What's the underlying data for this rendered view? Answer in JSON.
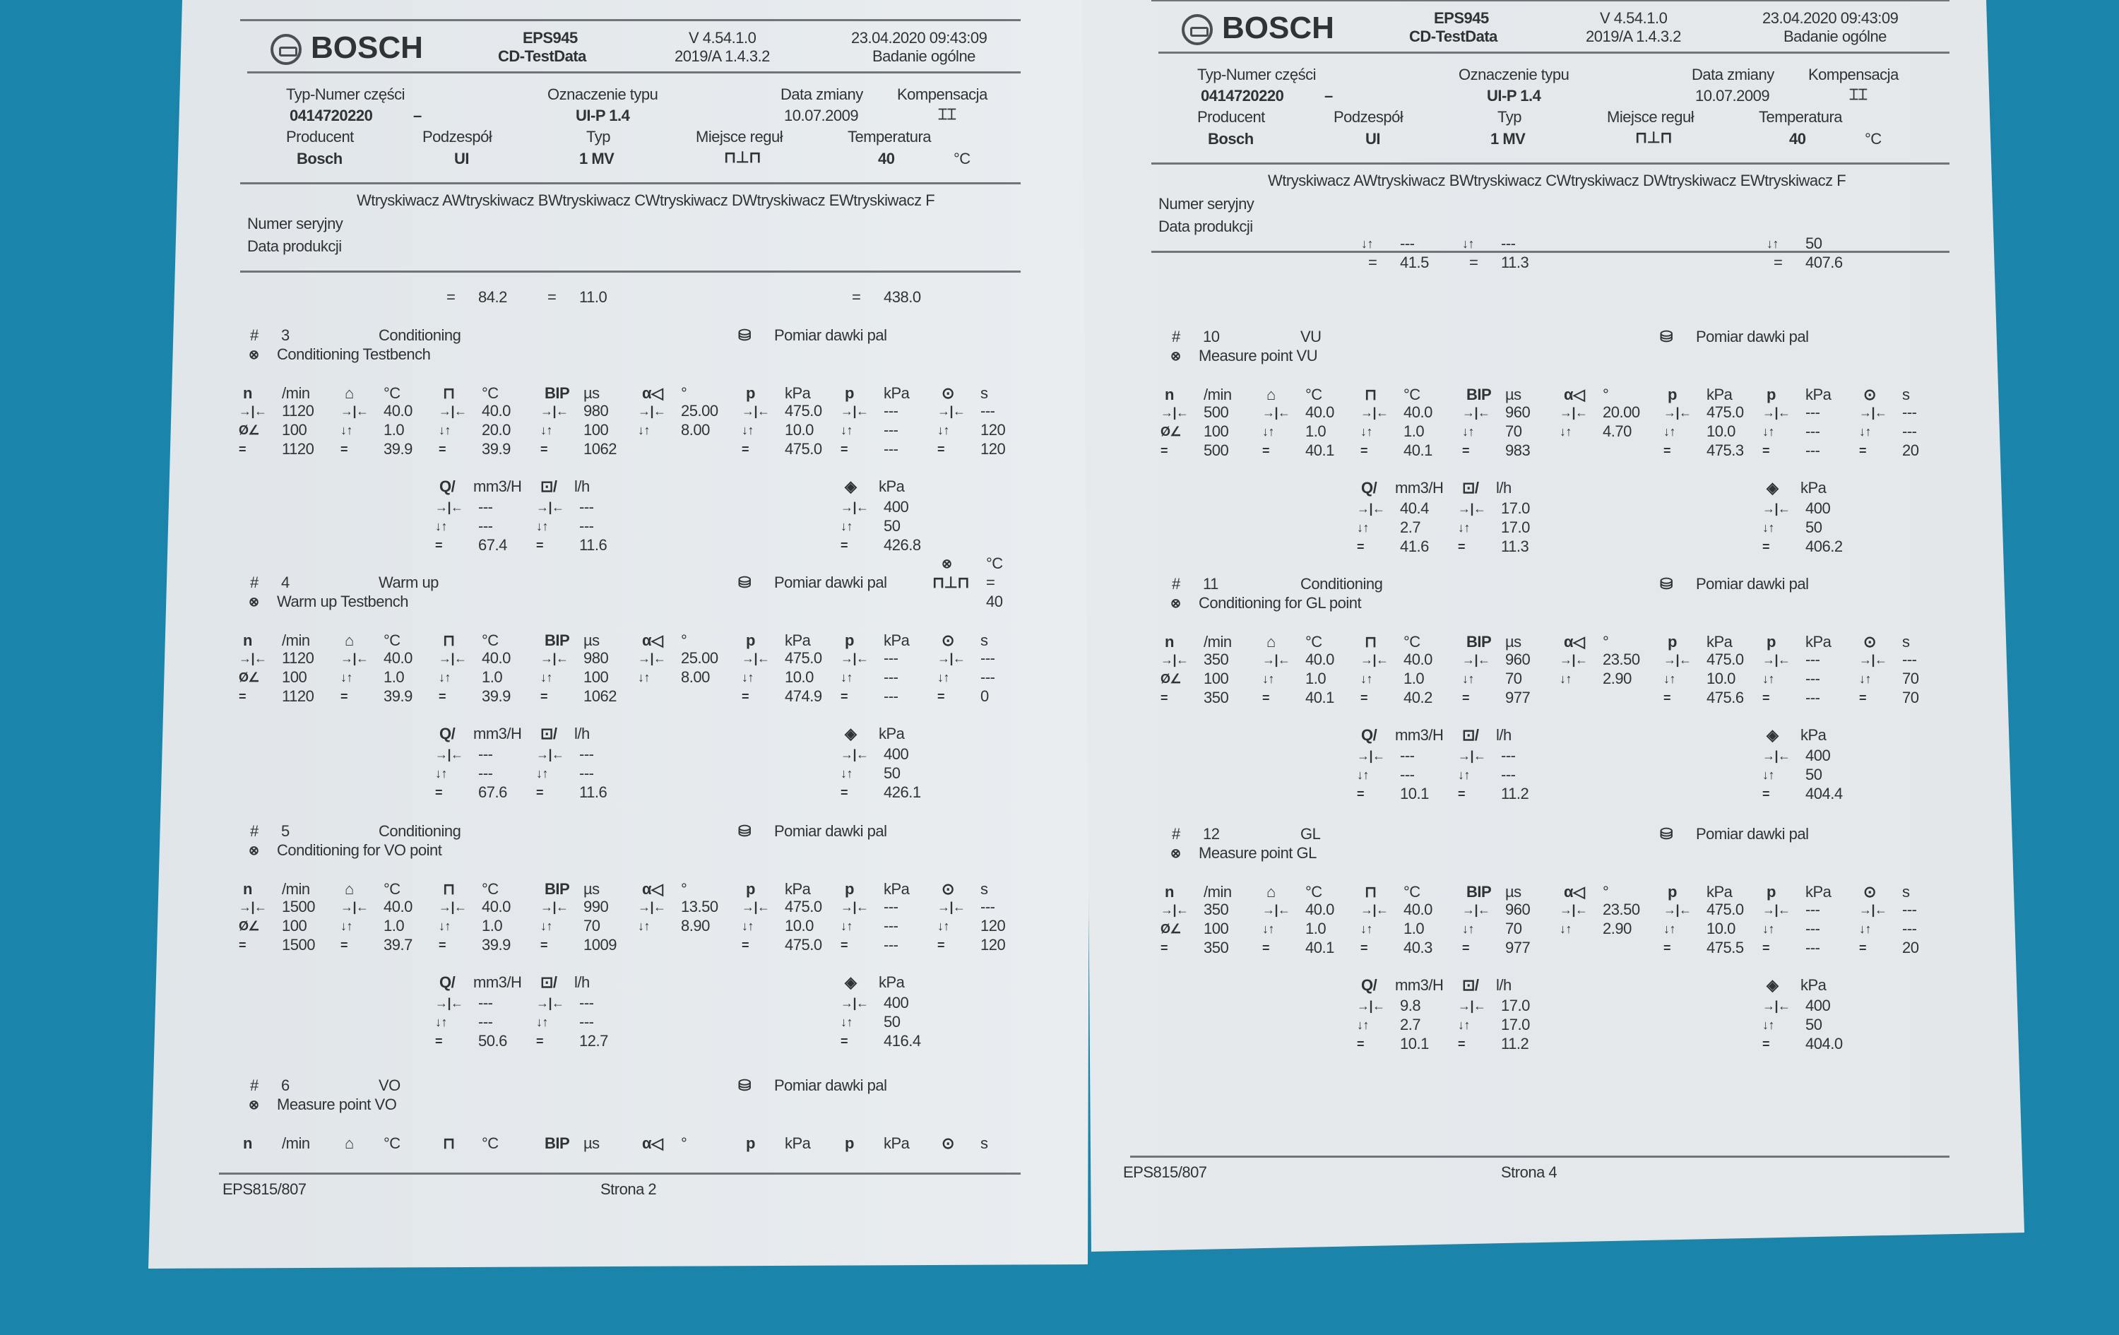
{
  "header": {
    "brand": "BOSCH",
    "product": "EPS945",
    "product_sub": "CD-TestData",
    "version": "V 4.54.1.0",
    "version_sub": "2019/A 1.4.3.2",
    "datetime": "23.04.2020 09:43:09",
    "test_type": "Badanie ogólne"
  },
  "info": {
    "part_label": "Typ-Numer części",
    "part_value": "0414720220",
    "part_dash": "–",
    "type_label": "Oznaczenie typu",
    "type_value": "UI-P 1.4",
    "changed_label": "Data zmiany",
    "changed_value": "10.07.2009",
    "comp_label": "Kompensacja",
    "comp_icon": "compensation-icon",
    "maker_label": "Producent",
    "maker_value": "Bosch",
    "component_label": "Podzespół",
    "component_value": "UI",
    "typ_label": "Typ",
    "typ_value": "1 MV",
    "place_label": "Miejsce reguł",
    "place_icon": "test-bench-icon",
    "temp_label": "Temperatura",
    "temp_value": "40",
    "temp_unit": "°C"
  },
  "injectors": "Wtryskiwacz AWtryskiwacz BWtryskiwacz CWtryskiwacz DWtryskiwacz EWtryskiwacz F",
  "serial_label": "Numer seryjny",
  "prod_date_label": "Data produkcji",
  "symbols": {
    "set": "→|←",
    "tol": "↓↑",
    "act": "=",
    "pct": "Ø∠",
    "hash": "#",
    "step": "⊗",
    "dash": "---"
  },
  "main_heads": [
    {
      "sym": "n",
      "unit": "/min"
    },
    {
      "sym": "⌂",
      "unit": "°C"
    },
    {
      "sym": "⊓",
      "unit": "°C"
    },
    {
      "sym": "BIP",
      "unit": "µs"
    },
    {
      "sym": "α◁",
      "unit": "°"
    },
    {
      "sym": "p",
      "unit": "kPa"
    },
    {
      "sym": "p",
      "unit": "kPa"
    },
    {
      "sym": "⊙",
      "unit": "s"
    }
  ],
  "sec_heads": [
    {
      "sym": "Q/",
      "unit": "mm3/H"
    },
    {
      "sym": "⊡/",
      "unit": "l/h"
    },
    {
      "sym": "◈",
      "unit": "kPa"
    }
  ],
  "pages": [
    {
      "footer_left": "EPS815/807",
      "footer_page": "Strona 2",
      "partial": {
        "tol": [
          null,
          null,
          null
        ],
        "act": [
          "84.2",
          "11.0",
          "438.0"
        ]
      },
      "blocks": [
        {
          "num": "3",
          "name": "Conditioning",
          "desc": "Conditioning Testbench",
          "method": "Pomiar dawki pal",
          "main": [
            [
              "1120",
              "100",
              "1120"
            ],
            [
              "40.0",
              "1.0",
              "39.9"
            ],
            [
              "40.0",
              "20.0",
              "39.9"
            ],
            [
              "980",
              "100",
              "1062"
            ],
            [
              "25.00",
              "8.00",
              ""
            ],
            [
              "475.0",
              "10.0",
              "475.0"
            ],
            [
              "---",
              "---",
              "---"
            ],
            [
              "---",
              "120",
              "120"
            ]
          ],
          "sec": [
            [
              "---",
              "---",
              "67.4"
            ],
            [
              "---",
              "---",
              "11.6"
            ],
            [
              "400",
              "50",
              "426.8"
            ]
          ]
        },
        {
          "num": "4",
          "name": "Warm up",
          "desc": "Warm up Testbench",
          "method": "Pomiar dawki pal",
          "extra": {
            "unit": "°C",
            "value": "40"
          },
          "main": [
            [
              "1120",
              "100",
              "1120"
            ],
            [
              "40.0",
              "1.0",
              "39.9"
            ],
            [
              "40.0",
              "1.0",
              "39.9"
            ],
            [
              "980",
              "100",
              "1062"
            ],
            [
              "25.00",
              "8.00",
              ""
            ],
            [
              "475.0",
              "10.0",
              "474.9"
            ],
            [
              "---",
              "---",
              "---"
            ],
            [
              "---",
              "---",
              "0"
            ]
          ],
          "sec": [
            [
              "---",
              "---",
              "67.6"
            ],
            [
              "---",
              "---",
              "11.6"
            ],
            [
              "400",
              "50",
              "426.1"
            ]
          ]
        },
        {
          "num": "5",
          "name": "Conditioning",
          "desc": "Conditioning for VO point",
          "method": "Pomiar dawki pal",
          "main": [
            [
              "1500",
              "100",
              "1500"
            ],
            [
              "40.0",
              "1.0",
              "39.7"
            ],
            [
              "40.0",
              "1.0",
              "39.9"
            ],
            [
              "990",
              "70",
              "1009"
            ],
            [
              "13.50",
              "8.90",
              ""
            ],
            [
              "475.0",
              "10.0",
              "475.0"
            ],
            [
              "---",
              "---",
              "---"
            ],
            [
              "---",
              "120",
              "120"
            ]
          ],
          "sec": [
            [
              "---",
              "---",
              "50.6"
            ],
            [
              "---",
              "---",
              "12.7"
            ],
            [
              "400",
              "50",
              "416.4"
            ]
          ]
        },
        {
          "num": "6",
          "name": "VO",
          "desc": "Measure point VO",
          "method": "Pomiar dawki pal",
          "main": [],
          "sec": []
        }
      ]
    },
    {
      "footer_left": "EPS815/807",
      "footer_page": "Strona 4",
      "partial": {
        "tol": [
          "---",
          "---",
          "50"
        ],
        "act": [
          "41.5",
          "11.3",
          "407.6"
        ]
      },
      "blocks": [
        {
          "num": "10",
          "name": "VU",
          "desc": "Measure point VU",
          "method": "Pomiar dawki pal",
          "main": [
            [
              "500",
              "100",
              "500"
            ],
            [
              "40.0",
              "1.0",
              "40.1"
            ],
            [
              "40.0",
              "1.0",
              "40.1"
            ],
            [
              "960",
              "70",
              "983"
            ],
            [
              "20.00",
              "4.70",
              ""
            ],
            [
              "475.0",
              "10.0",
              "475.3"
            ],
            [
              "---",
              "---",
              "---"
            ],
            [
              "---",
              "---",
              "20"
            ]
          ],
          "sec": [
            [
              "40.4",
              "2.7",
              "41.6"
            ],
            [
              "17.0",
              "17.0",
              "11.3"
            ],
            [
              "400",
              "50",
              "406.2"
            ]
          ]
        },
        {
          "num": "11",
          "name": "Conditioning",
          "desc": "Conditioning for GL point",
          "method": "Pomiar dawki pal",
          "main": [
            [
              "350",
              "100",
              "350"
            ],
            [
              "40.0",
              "1.0",
              "40.1"
            ],
            [
              "40.0",
              "1.0",
              "40.2"
            ],
            [
              "960",
              "70",
              "977"
            ],
            [
              "23.50",
              "2.90",
              ""
            ],
            [
              "475.0",
              "10.0",
              "475.6"
            ],
            [
              "---",
              "---",
              "---"
            ],
            [
              "---",
              "70",
              "70"
            ]
          ],
          "sec": [
            [
              "---",
              "---",
              "10.1"
            ],
            [
              "---",
              "---",
              "11.2"
            ],
            [
              "400",
              "50",
              "404.4"
            ]
          ]
        },
        {
          "num": "12",
          "name": "GL",
          "desc": "Measure point GL",
          "method": "Pomiar dawki pal",
          "main": [
            [
              "350",
              "100",
              "350"
            ],
            [
              "40.0",
              "1.0",
              "40.1"
            ],
            [
              "40.0",
              "1.0",
              "40.3"
            ],
            [
              "960",
              "70",
              "977"
            ],
            [
              "23.50",
              "2.90",
              ""
            ],
            [
              "475.0",
              "10.0",
              "475.5"
            ],
            [
              "---",
              "---",
              "---"
            ],
            [
              "---",
              "---",
              "20"
            ]
          ],
          "sec": [
            [
              "9.8",
              "2.7",
              "10.1"
            ],
            [
              "17.0",
              "17.0",
              "11.2"
            ],
            [
              "400",
              "50",
              "404.0"
            ]
          ]
        }
      ]
    }
  ],
  "colors": {
    "background": "#1b84ab",
    "paper": "#e6eaed",
    "ink": "#2f3336"
  }
}
